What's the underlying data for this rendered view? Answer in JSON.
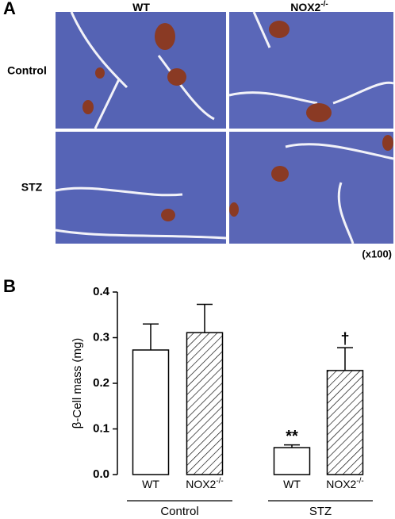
{
  "panel_a": {
    "label": "A",
    "columns": [
      {
        "text": "WT"
      },
      {
        "text": "NOX2",
        "sup": "-/-"
      }
    ],
    "rows": [
      "Control",
      "STZ"
    ],
    "magnification": "(x100)"
  },
  "chart_data": {
    "type": "bar",
    "panel_label": "B",
    "ylabel": "β-Cell mass (mg)",
    "categories": [
      {
        "text": "WT"
      },
      {
        "text": "NOX2",
        "sup": "-/-"
      },
      {
        "text": "WT"
      },
      {
        "text": "NOX2",
        "sup": "-/-"
      }
    ],
    "groups": [
      "Control",
      "STZ"
    ],
    "values": [
      0.273,
      0.311,
      0.059,
      0.228
    ],
    "errors": [
      0.057,
      0.062,
      0.006,
      0.05
    ],
    "annotations": [
      null,
      null,
      "**",
      "†"
    ],
    "patterns": [
      "none",
      "hatch",
      "none",
      "hatch"
    ],
    "ylim": [
      0,
      0.4
    ],
    "yticks": [
      {
        "value": 0,
        "label": "0.0"
      },
      0.1,
      0.2,
      0.3,
      0.4
    ]
  }
}
